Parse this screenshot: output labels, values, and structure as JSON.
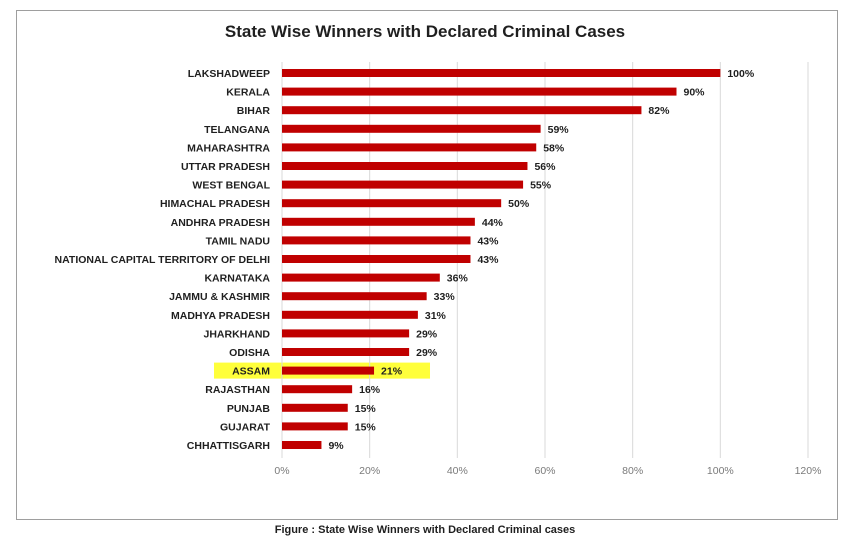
{
  "chart_data": {
    "type": "bar",
    "orientation": "horizontal",
    "title": "State Wise Winners with Declared Criminal Cases",
    "categories": [
      "LAKSHADWEEP",
      "KERALA",
      "BIHAR",
      "TELANGANA",
      "MAHARASHTRA",
      "UTTAR PRADESH",
      "WEST BENGAL",
      "HIMACHAL PRADESH",
      "ANDHRA PRADESH",
      "TAMIL NADU",
      "NATIONAL CAPITAL TERRITORY OF DELHI",
      "KARNATAKA",
      "JAMMU & KASHMIR",
      "MADHYA PRADESH",
      "JHARKHAND",
      "ODISHA",
      "ASSAM",
      "RAJASTHAN",
      "PUNJAB",
      "GUJARAT",
      "CHHATTISGARH"
    ],
    "values": [
      100,
      90,
      82,
      59,
      58,
      56,
      55,
      50,
      44,
      43,
      43,
      36,
      33,
      31,
      29,
      29,
      21,
      16,
      15,
      15,
      9
    ],
    "value_labels": [
      "100%",
      "90%",
      "82%",
      "59%",
      "58%",
      "56%",
      "55%",
      "50%",
      "44%",
      "43%",
      "43%",
      "36%",
      "33%",
      "31%",
      "29%",
      "29%",
      "21%",
      "16%",
      "15%",
      "15%",
      "9%"
    ],
    "xlim": [
      0,
      120
    ],
    "xticks": [
      "0%",
      "20%",
      "40%",
      "60%",
      "80%",
      "100%",
      "120%"
    ],
    "xtick_values": [
      0,
      20,
      40,
      60,
      80,
      100,
      120
    ],
    "highlighted_category": "ASSAM",
    "grid": true,
    "bar_color": "#c00000",
    "highlight_color": "#ffff3b",
    "grid_color": "#d9d9d9"
  },
  "caption": "Figure : State Wise Winners with Declared Criminal cases"
}
